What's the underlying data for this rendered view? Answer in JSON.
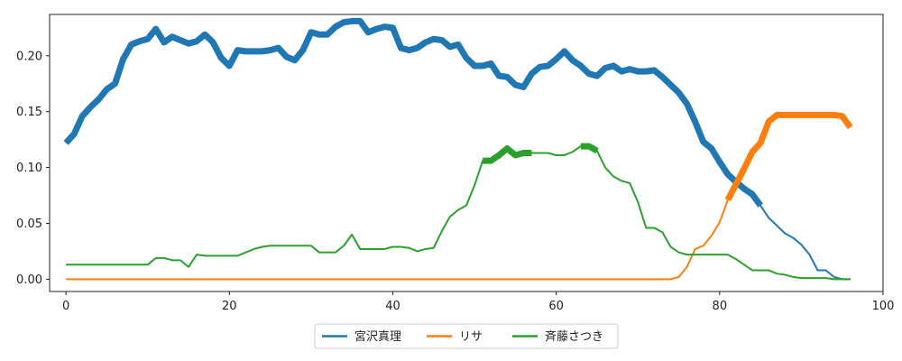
{
  "chart_data": {
    "type": "line",
    "title": "",
    "xlabel": "",
    "ylabel": "",
    "xlim": [
      -2,
      100
    ],
    "ylim": [
      -0.011,
      0.237
    ],
    "xticks": [
      0,
      20,
      40,
      60,
      80,
      100
    ],
    "yticks": [
      0.0,
      0.05,
      0.1,
      0.15,
      0.2
    ],
    "ytick_labels": [
      "0.00",
      "0.05",
      "0.10",
      "0.15",
      "0.20"
    ],
    "grid": false,
    "legend_position": "bottom-center",
    "series": [
      {
        "name": "宮沢真理",
        "color": "#1f77b4",
        "points": [
          [
            0,
            0.122
          ],
          [
            1,
            0.13
          ],
          [
            2,
            0.146
          ],
          [
            3,
            0.154
          ],
          [
            4,
            0.161
          ],
          [
            5,
            0.17
          ],
          [
            6,
            0.175
          ],
          [
            7,
            0.197
          ],
          [
            8,
            0.21
          ],
          [
            9,
            0.213
          ],
          [
            10,
            0.215
          ],
          [
            11,
            0.224
          ],
          [
            12,
            0.212
          ],
          [
            13,
            0.217
          ],
          [
            14,
            0.214
          ],
          [
            15,
            0.211
          ],
          [
            16,
            0.213
          ],
          [
            17,
            0.219
          ],
          [
            18,
            0.212
          ],
          [
            19,
            0.198
          ],
          [
            20,
            0.191
          ],
          [
            21,
            0.205
          ],
          [
            22,
            0.204
          ],
          [
            23,
            0.204
          ],
          [
            24,
            0.204
          ],
          [
            25,
            0.205
          ],
          [
            26,
            0.207
          ],
          [
            27,
            0.199
          ],
          [
            28,
            0.196
          ],
          [
            29,
            0.205
          ],
          [
            30,
            0.221
          ],
          [
            31,
            0.219
          ],
          [
            32,
            0.219
          ],
          [
            33,
            0.226
          ],
          [
            34,
            0.23
          ],
          [
            35,
            0.231
          ],
          [
            36,
            0.231
          ],
          [
            37,
            0.221
          ],
          [
            38,
            0.224
          ],
          [
            39,
            0.226
          ],
          [
            40,
            0.225
          ],
          [
            41,
            0.207
          ],
          [
            42,
            0.205
          ],
          [
            43,
            0.207
          ],
          [
            44,
            0.212
          ],
          [
            45,
            0.215
          ],
          [
            46,
            0.214
          ],
          [
            47,
            0.208
          ],
          [
            48,
            0.21
          ],
          [
            49,
            0.198
          ],
          [
            50,
            0.191
          ],
          [
            51,
            0.191
          ],
          [
            52,
            0.193
          ],
          [
            53,
            0.182
          ],
          [
            54,
            0.181
          ],
          [
            55,
            0.174
          ],
          [
            56,
            0.172
          ],
          [
            57,
            0.184
          ],
          [
            58,
            0.19
          ],
          [
            59,
            0.191
          ],
          [
            60,
            0.197
          ],
          [
            61,
            0.204
          ],
          [
            62,
            0.196
          ],
          [
            63,
            0.191
          ],
          [
            64,
            0.184
          ],
          [
            65,
            0.182
          ],
          [
            66,
            0.189
          ],
          [
            67,
            0.191
          ],
          [
            68,
            0.186
          ],
          [
            69,
            0.188
          ],
          [
            70,
            0.186
          ],
          [
            71,
            0.186
          ],
          [
            72,
            0.187
          ],
          [
            73,
            0.181
          ],
          [
            74,
            0.174
          ],
          [
            75,
            0.167
          ],
          [
            76,
            0.157
          ],
          [
            77,
            0.141
          ],
          [
            78,
            0.123
          ],
          [
            79,
            0.117
          ],
          [
            80,
            0.105
          ],
          [
            81,
            0.094
          ],
          [
            82,
            0.087
          ],
          [
            83,
            0.081
          ],
          [
            84,
            0.076
          ],
          [
            85,
            0.066
          ],
          [
            86,
            0.055
          ],
          [
            87,
            0.048
          ],
          [
            88,
            0.041
          ],
          [
            89,
            0.037
          ],
          [
            90,
            0.031
          ],
          [
            91,
            0.022
          ],
          [
            92,
            0.008
          ],
          [
            93,
            0.008
          ],
          [
            94,
            0.002
          ],
          [
            95,
            0.0
          ],
          [
            96,
            0.0
          ]
        ],
        "thick_ranges": [
          [
            0,
            85
          ]
        ]
      },
      {
        "name": "リサ",
        "color": "#ff7f0e",
        "points": [
          [
            0,
            0.0
          ],
          [
            10,
            0.0
          ],
          [
            20,
            0.0
          ],
          [
            30,
            0.0
          ],
          [
            40,
            0.0
          ],
          [
            50,
            0.0
          ],
          [
            60,
            0.0
          ],
          [
            70,
            0.0
          ],
          [
            74,
            0.0
          ],
          [
            75,
            0.002
          ],
          [
            76,
            0.011
          ],
          [
            77,
            0.027
          ],
          [
            78,
            0.03
          ],
          [
            79,
            0.039
          ],
          [
            80,
            0.051
          ],
          [
            81,
            0.071
          ],
          [
            82,
            0.085
          ],
          [
            83,
            0.099
          ],
          [
            84,
            0.114
          ],
          [
            85,
            0.122
          ],
          [
            86,
            0.141
          ],
          [
            87,
            0.147
          ],
          [
            88,
            0.147
          ],
          [
            89,
            0.147
          ],
          [
            90,
            0.147
          ],
          [
            91,
            0.147
          ],
          [
            92,
            0.147
          ],
          [
            93,
            0.147
          ],
          [
            94,
            0.147
          ],
          [
            95,
            0.146
          ],
          [
            96,
            0.136
          ]
        ],
        "thick_ranges": [
          [
            81,
            96
          ]
        ]
      },
      {
        "name": "斉藤さつき",
        "color": "#2ca02c",
        "points": [
          [
            0,
            0.013
          ],
          [
            5,
            0.013
          ],
          [
            10,
            0.013
          ],
          [
            11,
            0.019
          ],
          [
            12,
            0.019
          ],
          [
            13,
            0.017
          ],
          [
            14,
            0.017
          ],
          [
            15,
            0.011
          ],
          [
            16,
            0.022
          ],
          [
            17,
            0.021
          ],
          [
            18,
            0.021
          ],
          [
            19,
            0.021
          ],
          [
            20,
            0.021
          ],
          [
            21,
            0.021
          ],
          [
            22,
            0.024
          ],
          [
            23,
            0.027
          ],
          [
            24,
            0.029
          ],
          [
            25,
            0.03
          ],
          [
            26,
            0.03
          ],
          [
            27,
            0.03
          ],
          [
            28,
            0.03
          ],
          [
            29,
            0.03
          ],
          [
            30,
            0.03
          ],
          [
            31,
            0.024
          ],
          [
            32,
            0.024
          ],
          [
            33,
            0.024
          ],
          [
            34,
            0.03
          ],
          [
            35,
            0.04
          ],
          [
            36,
            0.027
          ],
          [
            37,
            0.027
          ],
          [
            38,
            0.027
          ],
          [
            39,
            0.027
          ],
          [
            40,
            0.029
          ],
          [
            41,
            0.029
          ],
          [
            42,
            0.028
          ],
          [
            43,
            0.025
          ],
          [
            44,
            0.027
          ],
          [
            45,
            0.028
          ],
          [
            46,
            0.043
          ],
          [
            47,
            0.056
          ],
          [
            48,
            0.062
          ],
          [
            49,
            0.066
          ],
          [
            50,
            0.084
          ],
          [
            51,
            0.106
          ],
          [
            52,
            0.106
          ],
          [
            53,
            0.111
          ],
          [
            54,
            0.117
          ],
          [
            55,
            0.111
          ],
          [
            56,
            0.113
          ],
          [
            57,
            0.113
          ],
          [
            58,
            0.113
          ],
          [
            59,
            0.113
          ],
          [
            60,
            0.111
          ],
          [
            61,
            0.111
          ],
          [
            62,
            0.114
          ],
          [
            63,
            0.119
          ],
          [
            64,
            0.119
          ],
          [
            65,
            0.115
          ],
          [
            66,
            0.1
          ],
          [
            67,
            0.092
          ],
          [
            68,
            0.088
          ],
          [
            69,
            0.086
          ],
          [
            70,
            0.069
          ],
          [
            71,
            0.046
          ],
          [
            72,
            0.046
          ],
          [
            73,
            0.042
          ],
          [
            74,
            0.029
          ],
          [
            75,
            0.024
          ],
          [
            76,
            0.022
          ],
          [
            77,
            0.022
          ],
          [
            78,
            0.022
          ],
          [
            79,
            0.022
          ],
          [
            80,
            0.022
          ],
          [
            81,
            0.022
          ],
          [
            82,
            0.018
          ],
          [
            83,
            0.013
          ],
          [
            84,
            0.008
          ],
          [
            85,
            0.008
          ],
          [
            86,
            0.008
          ],
          [
            87,
            0.005
          ],
          [
            88,
            0.004
          ],
          [
            89,
            0.002
          ],
          [
            90,
            0.001
          ],
          [
            91,
            0.001
          ],
          [
            92,
            0.001
          ],
          [
            93,
            0.001
          ],
          [
            94,
            0.0
          ],
          [
            95,
            0.0
          ],
          [
            96,
            0.0
          ]
        ],
        "thick_ranges": [
          [
            51,
            57
          ],
          [
            63,
            65
          ]
        ]
      }
    ]
  }
}
